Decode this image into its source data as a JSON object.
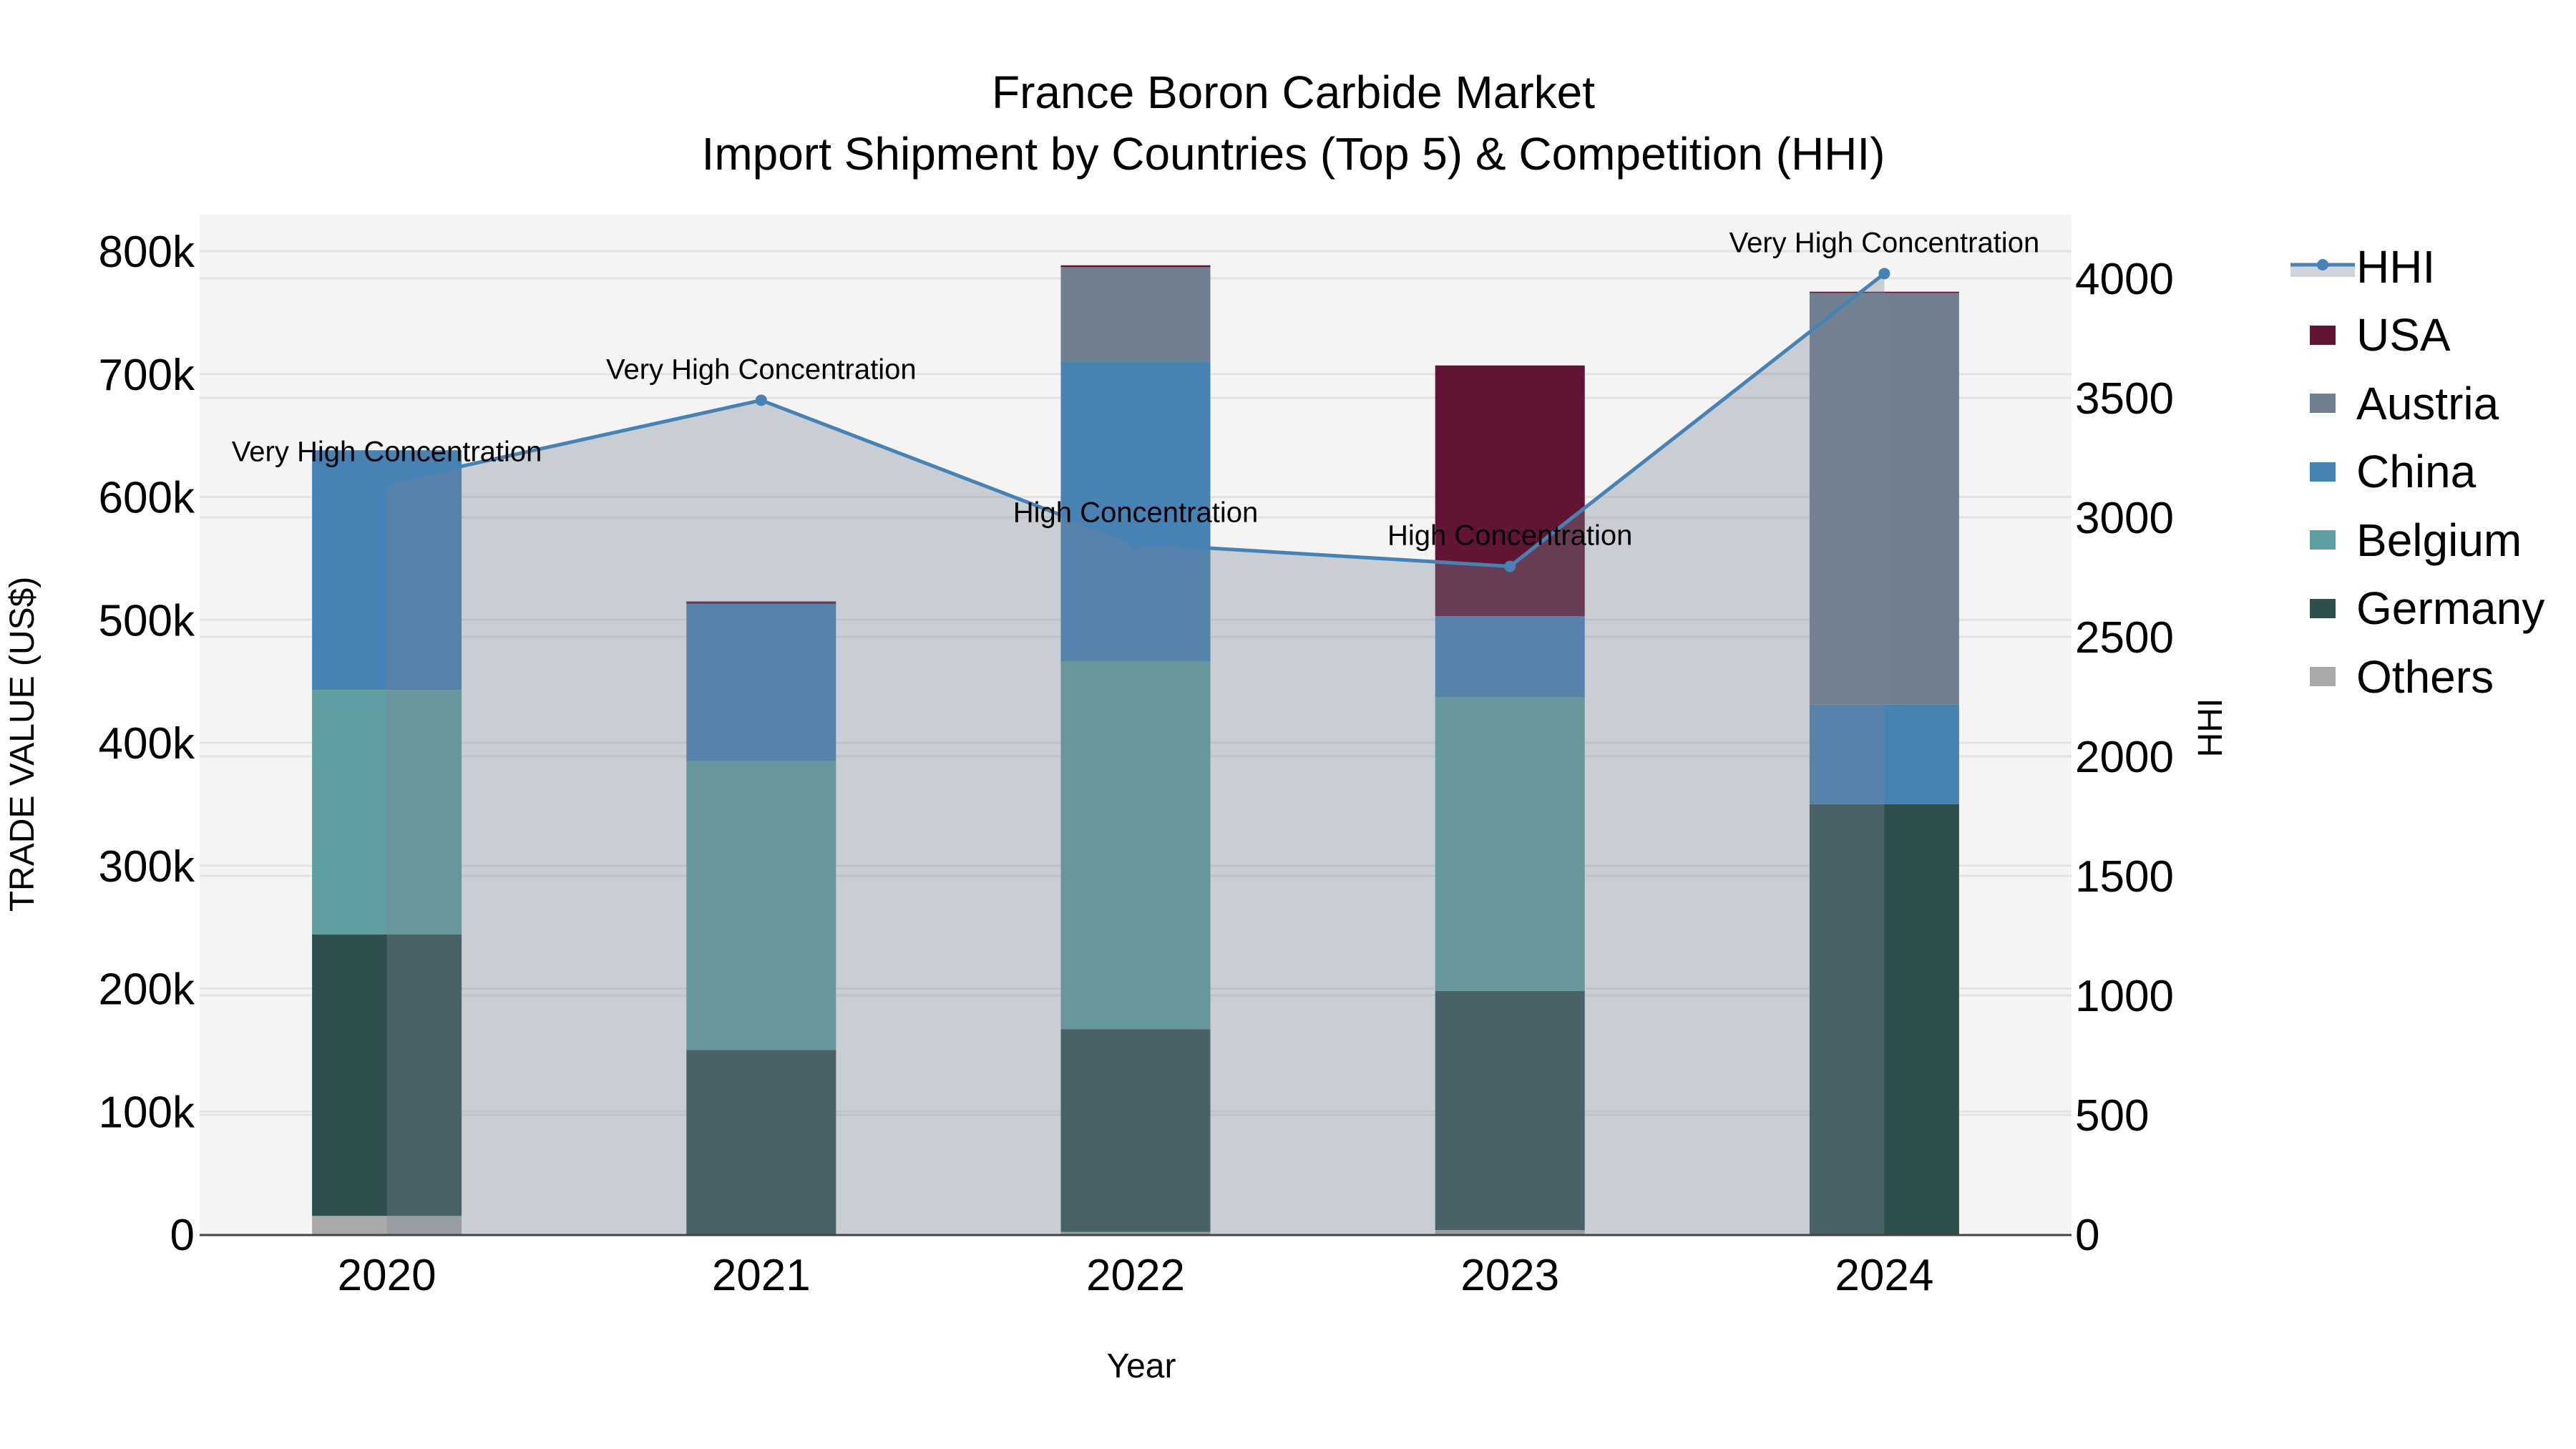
{
  "title": {
    "line1": "France Boron Carbide Market",
    "line2": "Import Shipment by Countries (Top 5) & Competition (HHI)"
  },
  "axes": {
    "x_title": "Year",
    "y_left_title": "TRADE VALUE (US$)",
    "y_right_title": "HHI",
    "y_left_ticks": [
      "0",
      "100k",
      "200k",
      "300k",
      "400k",
      "500k",
      "600k",
      "700k",
      "800k"
    ],
    "y_right_ticks": [
      "0",
      "500",
      "1000",
      "1500",
      "2000",
      "2500",
      "3000",
      "3500",
      "4000"
    ]
  },
  "legend": [
    {
      "label": "HHI",
      "type": "line",
      "color": "#4682b4"
    },
    {
      "label": "USA",
      "type": "bar",
      "color": "#611434"
    },
    {
      "label": "Austria",
      "type": "bar",
      "color": "#708090"
    },
    {
      "label": "China",
      "type": "bar",
      "color": "#4682b4"
    },
    {
      "label": "Belgium",
      "type": "bar",
      "color": "#5f9ea0"
    },
    {
      "label": "Germany",
      "type": "bar",
      "color": "#2f4f4f"
    },
    {
      "label": "Others",
      "type": "bar",
      "color": "#a9a9a9"
    }
  ],
  "chart_data": {
    "type": "bar",
    "title": "France Boron Carbide Market — Import Shipment by Countries (Top 5) & Competition (HHI)",
    "xlabel": "Year",
    "ylabel": "TRADE VALUE (US$)",
    "y2label": "HHI",
    "ylim": [
      0,
      830000
    ],
    "y2lim": [
      0,
      4300
    ],
    "grid": true,
    "legend_position": "right",
    "stacked": true,
    "categories": [
      "2020",
      "2021",
      "2022",
      "2023",
      "2024"
    ],
    "series": [
      {
        "name": "Others",
        "color": "#a9a9a9",
        "values": [
          15000,
          0,
          2000,
          3500,
          0
        ]
      },
      {
        "name": "Germany",
        "color": "#2f4f4f",
        "values": [
          229000,
          150000,
          165000,
          194500,
          350000
        ]
      },
      {
        "name": "Belgium",
        "color": "#5f9ea0",
        "values": [
          199000,
          235000,
          299000,
          239000,
          0
        ]
      },
      {
        "name": "China",
        "color": "#4682b4",
        "values": [
          195000,
          128000,
          244000,
          66000,
          81000
        ]
      },
      {
        "name": "Austria",
        "color": "#708090",
        "values": [
          0,
          0,
          77000,
          0,
          335000
        ]
      },
      {
        "name": "USA",
        "color": "#611434",
        "values": [
          0,
          2000,
          1500,
          204000,
          1000
        ]
      }
    ],
    "line_series": {
      "name": "HHI",
      "axis": "right",
      "color": "#4682b4",
      "values": [
        3145,
        3490,
        2890,
        2795,
        4020
      ],
      "annotations": [
        "Very High Concentration",
        "Very High Concentration",
        "High Concentration",
        "High Concentration",
        "Very High Concentration"
      ]
    }
  }
}
